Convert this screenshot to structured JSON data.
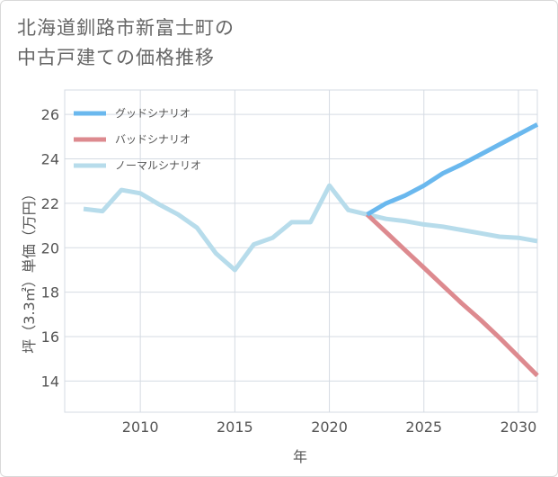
{
  "chart_data": {
    "type": "line",
    "title": "北海道釧路市新富士町の\n中古戸建ての価格推移",
    "xlabel": "年",
    "ylabel": "坪（3.3㎡）単価（万円）",
    "xlim": [
      2006,
      2031
    ],
    "ylim": [
      12.6,
      27.1
    ],
    "xticks": [
      2010,
      2015,
      2020,
      2025,
      2030
    ],
    "yticks": [
      14,
      16,
      18,
      20,
      22,
      24,
      26
    ],
    "grid": true,
    "legend_position": "top-left",
    "series": [
      {
        "name": "グッドシナリオ",
        "color": "#6ab8ee",
        "x": [
          2022,
          2023,
          2024,
          2025,
          2026,
          2027,
          2028,
          2029,
          2030,
          2031
        ],
        "y": [
          21.5,
          22.0,
          22.35,
          22.8,
          23.35,
          23.75,
          24.2,
          24.65,
          25.1,
          25.55
        ]
      },
      {
        "name": "バッドシナリオ",
        "color": "#dd8a8f",
        "x": [
          2022,
          2023,
          2024,
          2025,
          2026,
          2027,
          2028,
          2029,
          2030,
          2031
        ],
        "y": [
          21.5,
          20.7,
          19.9,
          19.1,
          18.3,
          17.5,
          16.75,
          15.95,
          15.1,
          14.25
        ]
      },
      {
        "name": "ノーマルシナリオ",
        "color": "#b7dceb",
        "x": [
          2007,
          2008,
          2009,
          2010,
          2011,
          2012,
          2013,
          2014,
          2015,
          2016,
          2017,
          2018,
          2019,
          2020,
          2021,
          2022,
          2023,
          2024,
          2025,
          2026,
          2027,
          2028,
          2029,
          2030,
          2031
        ],
        "y": [
          21.75,
          21.65,
          22.6,
          22.45,
          21.95,
          21.5,
          20.9,
          19.75,
          19.0,
          20.15,
          20.45,
          21.15,
          21.15,
          22.8,
          21.7,
          21.5,
          21.3,
          21.2,
          21.05,
          20.95,
          20.8,
          20.65,
          20.5,
          20.45,
          20.3
        ]
      }
    ]
  }
}
